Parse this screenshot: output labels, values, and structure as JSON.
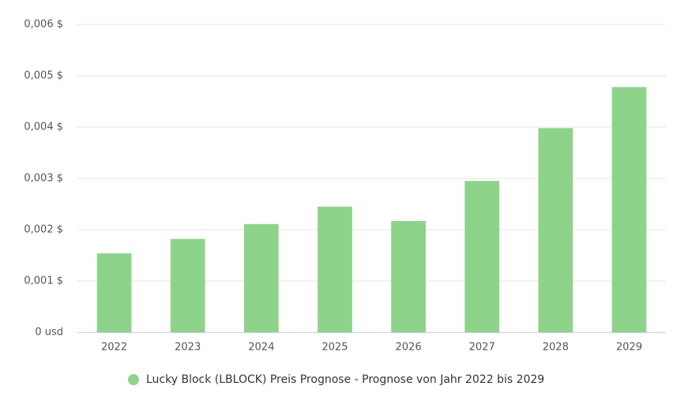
{
  "chart_data": {
    "type": "bar",
    "categories": [
      "2022",
      "2023",
      "2024",
      "2025",
      "2026",
      "2027",
      "2028",
      "2029"
    ],
    "series": [
      {
        "name": "Lucky Block (LBLOCK) Preis Prognose - Prognose von Jahr 2022 bis 2029",
        "color": "#8dd48a",
        "values": [
          0.00154,
          0.00182,
          0.00211,
          0.00245,
          0.00217,
          0.00295,
          0.00398,
          0.00478
        ]
      }
    ],
    "ylim": [
      0,
      0.006
    ],
    "yticks": [
      {
        "value": 0,
        "label": "0 usd"
      },
      {
        "value": 0.001,
        "label": "0,001 $"
      },
      {
        "value": 0.002,
        "label": "0,002 $"
      },
      {
        "value": 0.003,
        "label": "0,003 $"
      },
      {
        "value": 0.004,
        "label": "0,004 $"
      },
      {
        "value": 0.005,
        "label": "0,005 $"
      },
      {
        "value": 0.006,
        "label": "0,006 $"
      }
    ],
    "grid": true,
    "legend": "bottom"
  }
}
